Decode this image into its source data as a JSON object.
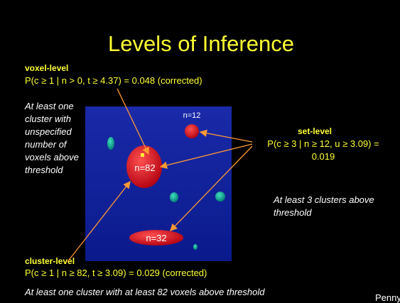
{
  "title": "Levels of Inference",
  "voxel_level": {
    "heading": "voxel-level",
    "formula": "P(c ≥ 1 | n > 0, t ≥ 4.37) = 0.048 (corrected)",
    "note": [
      "At least one",
      "cluster with",
      "unspecified",
      "number of",
      "voxels above",
      "threshold"
    ]
  },
  "clusters": [
    {
      "label": "n=12"
    },
    {
      "label": "n=82"
    },
    {
      "label": "n=32"
    }
  ],
  "set_level": {
    "heading": "set-level",
    "formula": [
      "P(c ≥ 3 | n ≥ 12, u ≥ 3.09) =",
      "0.019"
    ],
    "note": [
      "At least 3 clusters above",
      "threshold"
    ]
  },
  "cluster_level": {
    "heading": "cluster-level",
    "formula": "P(c ≥ 1 | n ≥ 82, t ≥ 3.09) = 0.029 (corrected)",
    "note": "At least one cluster with at least 82 voxels above threshold"
  },
  "author": "Penny"
}
